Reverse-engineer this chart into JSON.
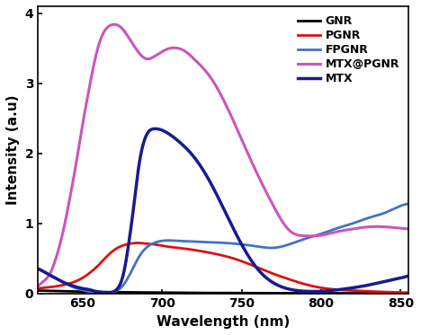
{
  "title": "",
  "xlabel": "Wavelength (nm)",
  "ylabel": "Intensity (a.u)",
  "xlim": [
    622,
    855
  ],
  "ylim": [
    0,
    4.1
  ],
  "yticks": [
    0,
    1,
    2,
    3,
    4
  ],
  "xticks": [
    650,
    700,
    750,
    800,
    850
  ],
  "legend_labels": [
    "GNR",
    "PGNR",
    "FPGNR",
    "MTX@PGNR",
    "MTX"
  ],
  "colors": {
    "GNR": "#000000",
    "PGNR": "#dd1111",
    "FPGNR": "#4472c4",
    "MTX@PGNR": "#cc55bb",
    "MTX": "#1a1a8e"
  },
  "linewidths": {
    "GNR": 2.0,
    "PGNR": 2.0,
    "FPGNR": 2.0,
    "MTX@PGNR": 2.2,
    "MTX": 2.5
  },
  "GNR": {
    "x": [
      622,
      640,
      660,
      680,
      700,
      720,
      740,
      760,
      780,
      800,
      820,
      840,
      855
    ],
    "y": [
      0.04,
      0.03,
      0.02,
      0.015,
      0.01,
      0.007,
      0.005,
      0.003,
      0.002,
      0.002,
      0.001,
      0.001,
      0.001
    ]
  },
  "PGNR": {
    "x": [
      622,
      630,
      640,
      650,
      655,
      660,
      665,
      670,
      675,
      680,
      685,
      690,
      695,
      700,
      710,
      720,
      730,
      740,
      750,
      760,
      770,
      780,
      790,
      800,
      820,
      840,
      855
    ],
    "y": [
      0.07,
      0.09,
      0.13,
      0.22,
      0.3,
      0.4,
      0.52,
      0.62,
      0.68,
      0.71,
      0.72,
      0.71,
      0.7,
      0.68,
      0.65,
      0.62,
      0.58,
      0.53,
      0.46,
      0.37,
      0.28,
      0.2,
      0.13,
      0.08,
      0.04,
      0.02,
      0.01
    ]
  },
  "FPGNR": {
    "x": [
      622,
      628,
      633,
      638,
      643,
      648,
      653,
      658,
      663,
      667,
      670,
      675,
      680,
      685,
      690,
      695,
      700,
      710,
      720,
      730,
      740,
      750,
      760,
      770,
      780,
      790,
      800,
      810,
      820,
      830,
      840,
      850,
      855
    ],
    "y": [
      0.35,
      0.28,
      0.22,
      0.16,
      0.1,
      0.06,
      0.03,
      0.01,
      0.005,
      0.0,
      0.02,
      0.1,
      0.28,
      0.5,
      0.65,
      0.72,
      0.75,
      0.75,
      0.74,
      0.73,
      0.72,
      0.7,
      0.67,
      0.65,
      0.7,
      0.78,
      0.85,
      0.93,
      1.0,
      1.08,
      1.15,
      1.25,
      1.28
    ]
  },
  "MTX@PGNR": {
    "x": [
      622,
      626,
      630,
      634,
      638,
      642,
      646,
      650,
      654,
      658,
      661,
      664,
      667,
      670,
      675,
      680,
      685,
      690,
      695,
      700,
      705,
      710,
      715,
      720,
      730,
      740,
      750,
      760,
      770,
      780,
      790,
      800,
      810,
      820,
      830,
      840,
      850,
      855
    ],
    "y": [
      0.1,
      0.18,
      0.3,
      0.55,
      0.9,
      1.35,
      1.85,
      2.4,
      2.9,
      3.35,
      3.6,
      3.75,
      3.82,
      3.84,
      3.78,
      3.62,
      3.45,
      3.35,
      3.38,
      3.45,
      3.5,
      3.5,
      3.45,
      3.35,
      3.1,
      2.7,
      2.2,
      1.7,
      1.25,
      0.9,
      0.82,
      0.83,
      0.88,
      0.92,
      0.95,
      0.95,
      0.93,
      0.92
    ]
  },
  "MTX": {
    "x": [
      622,
      625,
      628,
      632,
      636,
      640,
      645,
      650,
      655,
      658,
      661,
      664,
      667,
      670,
      673,
      676,
      679,
      682,
      685,
      690,
      695,
      700,
      710,
      720,
      730,
      740,
      750,
      760,
      770,
      780,
      790,
      800,
      810,
      820,
      830,
      840,
      850,
      855
    ],
    "y": [
      0.35,
      0.32,
      0.28,
      0.23,
      0.18,
      0.14,
      0.1,
      0.07,
      0.05,
      0.03,
      0.02,
      0.01,
      0.01,
      0.03,
      0.1,
      0.3,
      0.7,
      1.2,
      1.75,
      2.25,
      2.35,
      2.33,
      2.18,
      1.95,
      1.6,
      1.15,
      0.7,
      0.35,
      0.15,
      0.06,
      0.03,
      0.03,
      0.05,
      0.08,
      0.12,
      0.17,
      0.22,
      0.25
    ]
  }
}
